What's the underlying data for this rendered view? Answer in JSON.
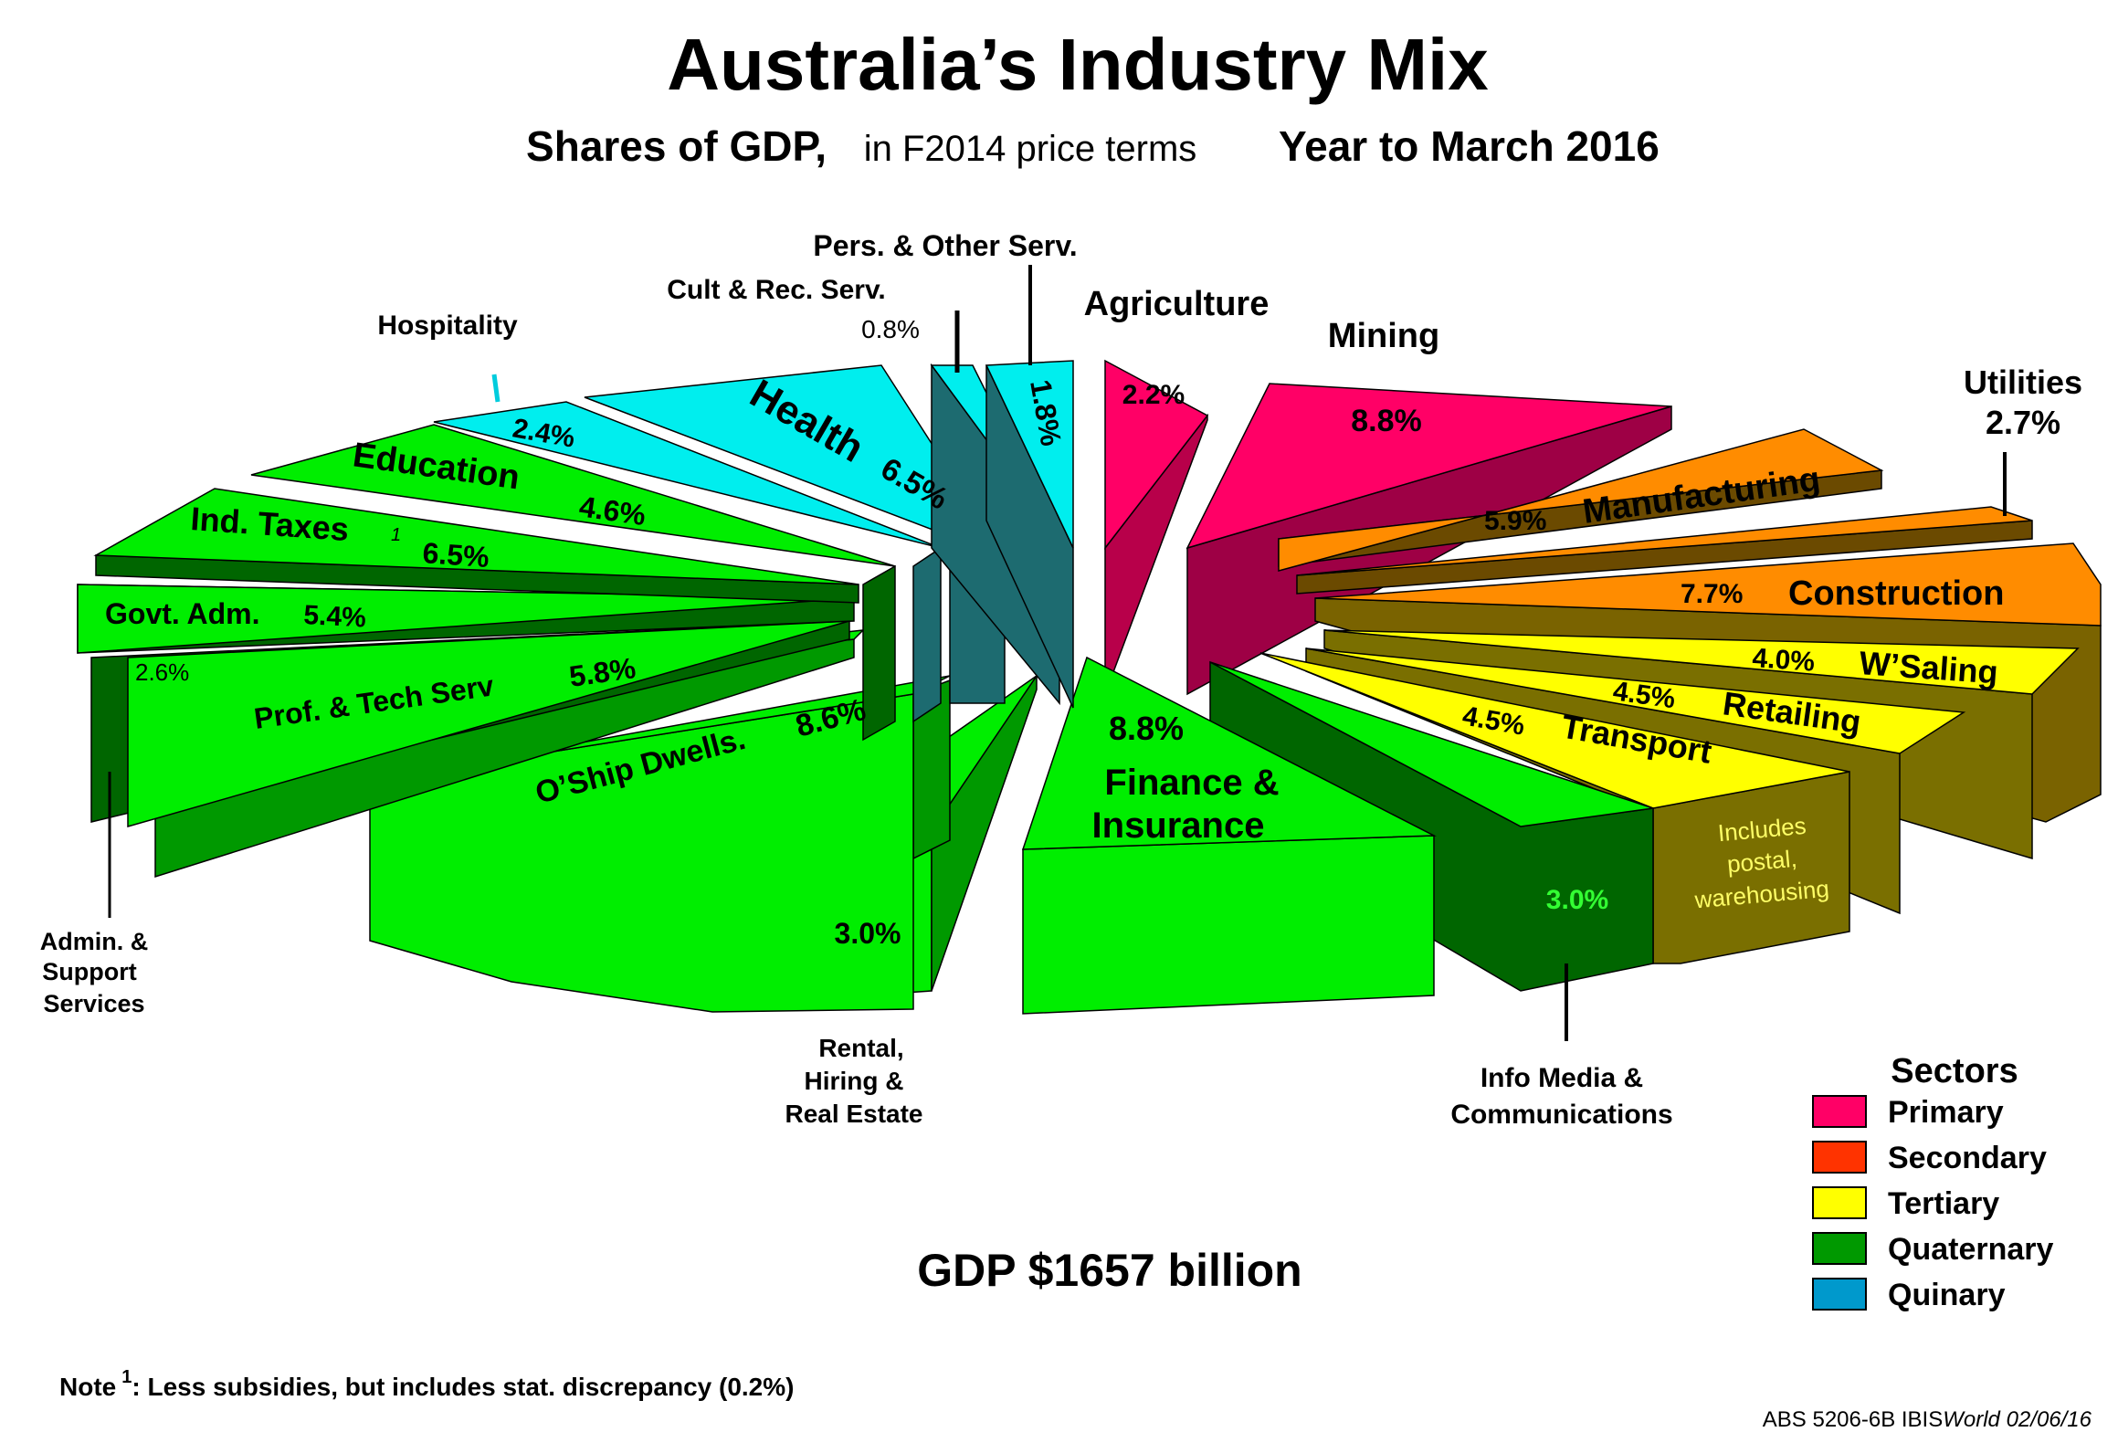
{
  "chart_data": {
    "type": "pie",
    "style": "3d exploded",
    "title": "Australia’s Industry Mix",
    "subtitle_bold": "Shares of GDP,",
    "subtitle_plain": "in F2014 price terms",
    "subtitle_period": "Year to March 2016",
    "total_label": "GDP $1657 billion",
    "note_marker": "Note",
    "note_sup": "1",
    "note_text": ":  Less subsidies, but includes stat. discrepancy (0.2%)",
    "source_text": "ABS 5206-6B IBIS",
    "source_italic": "World 02/06/16",
    "legend_title": "Sectors",
    "legend": [
      {
        "name": "Primary",
        "color": "#ff0066"
      },
      {
        "name": "Secondary",
        "color": "#ff3300"
      },
      {
        "name": "Tertiary",
        "color": "#ffff00"
      },
      {
        "name": "Quaternary",
        "color": "#009900"
      },
      {
        "name": "Quinary",
        "color": "#0099cc"
      }
    ],
    "slices": [
      {
        "name": "Agriculture",
        "value": 2.2,
        "value_label": "2.2%",
        "sector": "Primary",
        "color": "#ff0066"
      },
      {
        "name": "Mining",
        "value": 8.8,
        "value_label": "8.8%",
        "sector": "Primary",
        "color": "#ff0066"
      },
      {
        "name": "Manufacturing",
        "value": 5.9,
        "value_label": "5.9%",
        "sector": "Secondary",
        "color": "#ff8c00"
      },
      {
        "name": "Utilities",
        "value": 2.7,
        "value_label": "2.7%",
        "sector": "Secondary",
        "color": "#ff8c00"
      },
      {
        "name": "Construction",
        "value": 7.7,
        "value_label": "7.7%",
        "sector": "Secondary",
        "color": "#ff8c00"
      },
      {
        "name": "W’Saling",
        "value": 4.0,
        "value_label": "4.0%",
        "sector": "Tertiary",
        "color": "#ffff00"
      },
      {
        "name": "Retailing",
        "value": 4.5,
        "value_label": "4.5%",
        "sector": "Tertiary",
        "color": "#ffff00"
      },
      {
        "name": "Transport",
        "value": 4.5,
        "value_label": "4.5%",
        "sector": "Tertiary",
        "color": "#ffff00",
        "note": "Includes postal, warehousing"
      },
      {
        "name": "Info Media & Communications",
        "value": 3.0,
        "value_label": "3.0%",
        "sector": "Quaternary",
        "color": "#00ee00"
      },
      {
        "name": "Finance & Insurance",
        "value": 8.8,
        "value_label": "8.8%",
        "sector": "Quaternary",
        "color": "#00ee00"
      },
      {
        "name": "Rental, Hiring & Real Estate",
        "value": 3.0,
        "value_label": "3.0%",
        "sector": "Quaternary",
        "color": "#00ee00"
      },
      {
        "name": "O’Ship Dwells.",
        "value": 8.6,
        "value_label": "8.6%",
        "sector": "Quaternary",
        "color": "#00ee00"
      },
      {
        "name": "Prof. & Tech Serv",
        "value": 5.8,
        "value_label": "5.8%",
        "sector": "Quaternary",
        "color": "#00ee00"
      },
      {
        "name": "Admin. & Support Services",
        "value": 2.6,
        "value_label": "2.6%",
        "sector": "Quaternary",
        "color": "#00ee00"
      },
      {
        "name": "Govt. Adm.",
        "value": 5.4,
        "value_label": "5.4%",
        "sector": "Quaternary",
        "color": "#00ee00"
      },
      {
        "name": "Ind. Taxes",
        "value": 6.5,
        "value_label": "6.5%",
        "sector": "Quaternary",
        "color": "#00ee00"
      },
      {
        "name": "Education",
        "value": 4.6,
        "value_label": "4.6%",
        "sector": "Quaternary",
        "color": "#00ee00"
      },
      {
        "name": "Hospitality",
        "value": 2.4,
        "value_label": "2.4%",
        "sector": "Quinary",
        "color": "#00eeee"
      },
      {
        "name": "Health",
        "value": 6.5,
        "value_label": "6.5%",
        "sector": "Quinary",
        "color": "#00eeee"
      },
      {
        "name": "Cult & Rec. Serv.",
        "value": 0.8,
        "value_label": "0.8%",
        "sector": "Quinary",
        "color": "#00eeee"
      },
      {
        "name": "Pers.  & Other Serv.",
        "value": 1.8,
        "value_label": "1.8%",
        "sector": "Quinary",
        "color": "#00eeee"
      }
    ],
    "slice_text": {
      "agriculture": "Agriculture",
      "mining": "Mining",
      "manufacturing": "Manufacturing",
      "utilities": "Utilities",
      "construction": "Construction",
      "wsaling": "W’Saling",
      "retailing": "Retailing",
      "transport": "Transport",
      "transport_note_1": "Includes",
      "transport_note_2": "postal,",
      "transport_note_3": "warehousing",
      "info_1": "Info Media &",
      "info_2": "Communications",
      "finance_1": "Finance &",
      "finance_2": "Insurance",
      "rental_1": "Rental,",
      "rental_2": "Hiring &",
      "rental_3": "Real Estate",
      "oship": "O’Ship  Dwells.",
      "prof": "Prof. & Tech Serv",
      "admin_1": "Admin. &",
      "admin_2": "Support",
      "admin_3": "Services",
      "govt": "Govt. Adm.",
      "indtax": "Ind. Taxes",
      "indtax_sup": "1",
      "education": "Education",
      "hospitality": "Hospitality",
      "health": "Health",
      "cult": "Cult & Rec. Serv.",
      "pers": "Pers.  & Other Serv."
    }
  }
}
